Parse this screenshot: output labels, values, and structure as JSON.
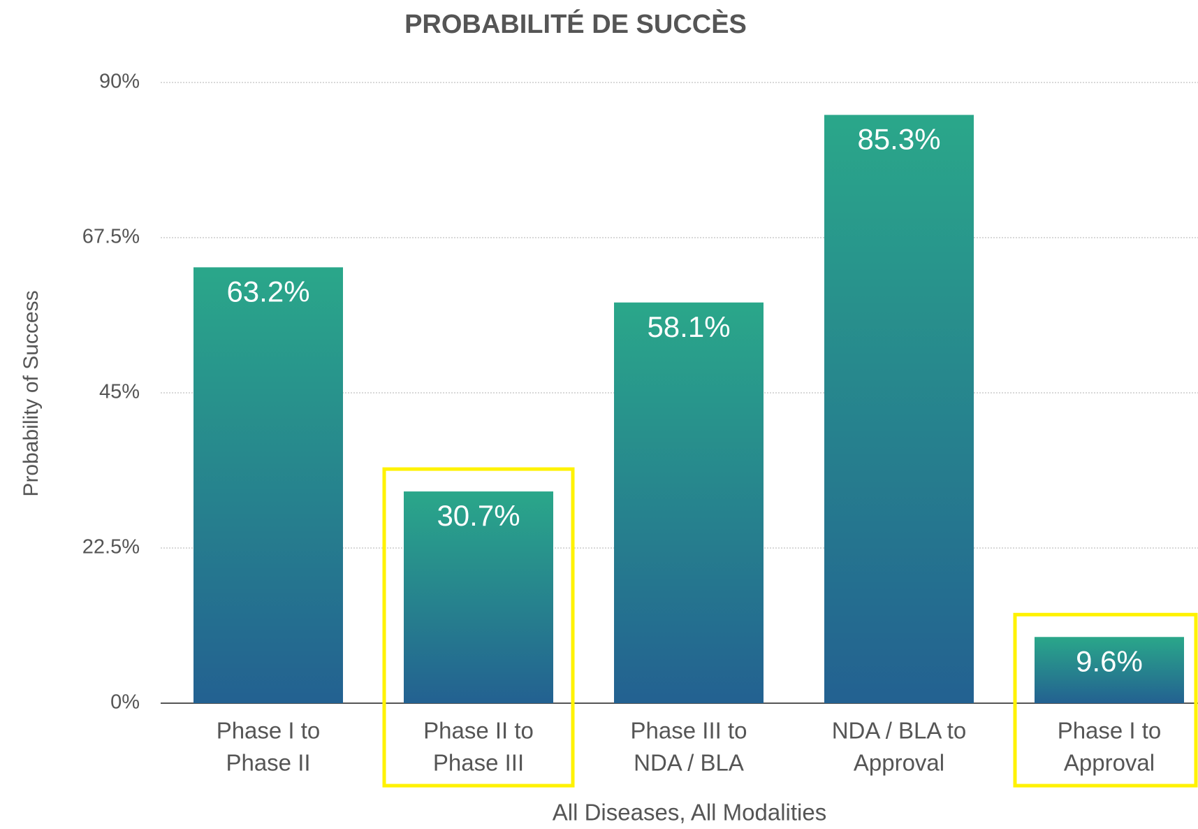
{
  "chart_data": {
    "type": "bar",
    "title": "PROBABILITÉ DE SUCCÈS",
    "ylabel": "Probability of Success",
    "xlabel": "All Diseases, All Modalities",
    "categories": [
      [
        "Phase I to",
        "Phase II"
      ],
      [
        "Phase II to",
        "Phase III"
      ],
      [
        "Phase III to",
        "NDA / BLA"
      ],
      [
        "NDA / BLA to",
        "Approval"
      ],
      [
        "Phase I to",
        "Approval"
      ]
    ],
    "values": [
      63.2,
      30.7,
      58.1,
      85.3,
      9.6
    ],
    "value_labels": [
      "63.2%",
      "30.7%",
      "58.1%",
      "85.3%",
      "9.6%"
    ],
    "color_top": "#2aa78a",
    "color_bottom": "#236191",
    "highlight": [
      1,
      4
    ],
    "highlight_color": "#fff200",
    "ylim": [
      0,
      90
    ],
    "yticks": [
      {
        "value": 0,
        "label": "0%"
      },
      {
        "value": 22.5,
        "label": "22.5%"
      },
      {
        "value": 45,
        "label": "45%"
      },
      {
        "value": 67.5,
        "label": "67.5%"
      },
      {
        "value": 90,
        "label": "90%"
      }
    ],
    "grid": true
  }
}
